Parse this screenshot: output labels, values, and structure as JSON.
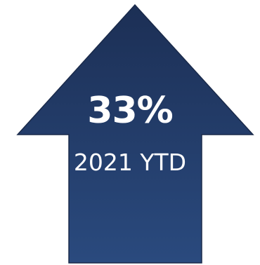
{
  "metric": {
    "value": "33%",
    "label": "2021 YTD"
  },
  "graphic": {
    "icon": "up-arrow-icon",
    "fill_top": "#1c2f55",
    "fill_bottom": "#2a4a7e",
    "stroke": "#1a2a4a",
    "text_color": "#ffffff"
  }
}
